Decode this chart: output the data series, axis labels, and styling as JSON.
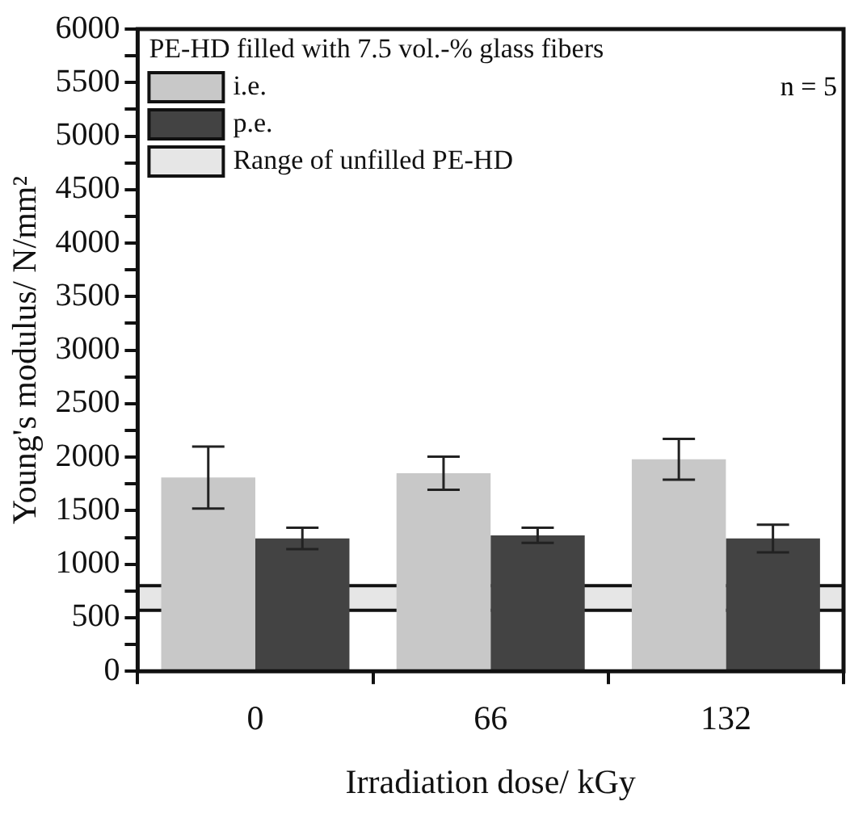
{
  "chart_data": {
    "type": "bar",
    "xlabel": "Irradiation dose/ kGy",
    "ylabel": "Young's modulus/ N/mm²",
    "legend_title": "PE-HD filled with 7.5 vol.-% glass fibers",
    "categories": [
      "0",
      "66",
      "132"
    ],
    "series": [
      {
        "name": "i.e.",
        "color": "#c8c8c8",
        "values": [
          1810,
          1850,
          1980
        ],
        "errors": [
          290,
          155,
          190
        ]
      },
      {
        "name": "p.e.",
        "color": "#434343",
        "values": [
          1240,
          1270,
          1240
        ],
        "errors": [
          100,
          70,
          130
        ]
      }
    ],
    "bands": [
      {
        "axis": "y",
        "from": 570,
        "to": 800,
        "label": "Range of unfilled PE-HD",
        "color": "#e6e6e6"
      }
    ],
    "annotations": [
      "n = 5"
    ],
    "ylim": [
      0,
      6000
    ],
    "yticks": [
      0,
      {
        "value": 250,
        "label": null
      },
      500,
      {
        "value": 750,
        "label": null
      },
      1000,
      {
        "value": 1250,
        "label": null
      },
      1500,
      {
        "value": 1750,
        "label": null
      },
      2000,
      {
        "value": 2250,
        "label": null
      },
      2500,
      {
        "value": 2750,
        "label": null
      },
      3000,
      {
        "value": 3250,
        "label": null
      },
      3500,
      {
        "value": 3750,
        "label": null
      },
      4000,
      {
        "value": 4250,
        "label": null
      },
      4500,
      {
        "value": 4750,
        "label": null
      },
      5000,
      {
        "value": 5250,
        "label": null
      },
      5500,
      {
        "value": 5750,
        "label": null
      },
      6000
    ],
    "grid": false,
    "legend": "top left"
  }
}
